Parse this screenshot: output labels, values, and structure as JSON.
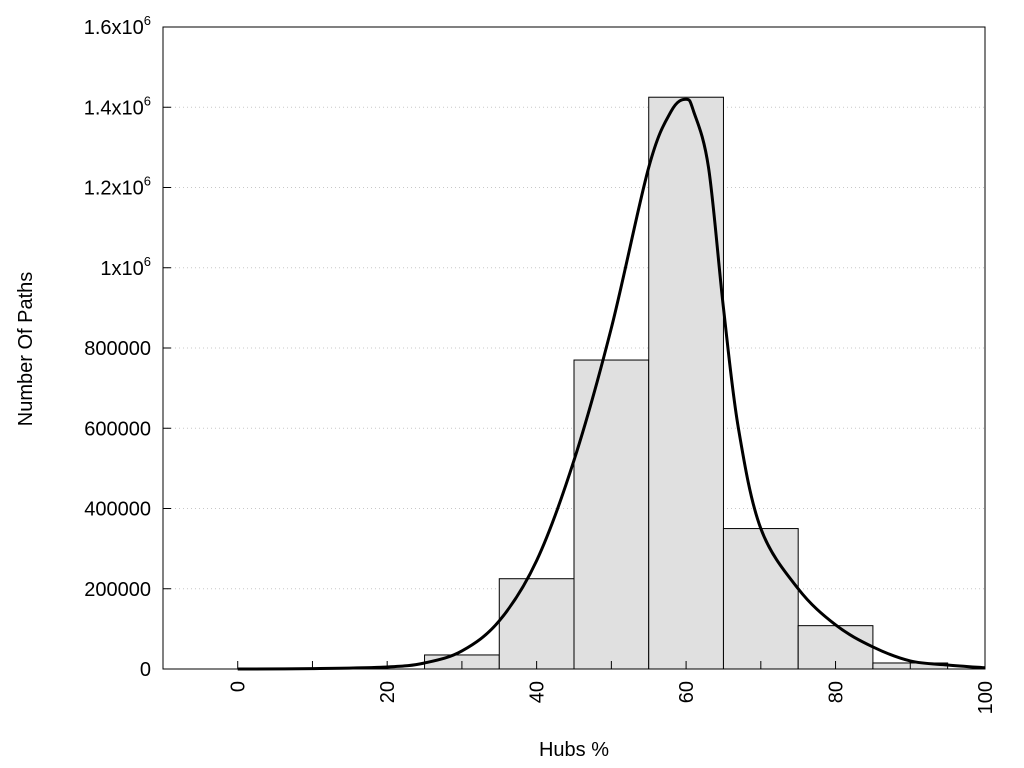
{
  "chart_data": {
    "type": "bar",
    "xlabel": "Hubs %",
    "ylabel": "Number Of Paths",
    "xlim": [
      -10,
      100
    ],
    "ylim": [
      0,
      1600000
    ],
    "x_ticks": [
      {
        "value": 0,
        "label": "0"
      },
      {
        "value": 20,
        "label": "20"
      },
      {
        "value": 40,
        "label": "40"
      },
      {
        "value": 60,
        "label": "60"
      },
      {
        "value": 80,
        "label": "80"
      },
      {
        "value": 100,
        "label": "100"
      }
    ],
    "y_ticks": [
      {
        "value": 0,
        "label": "0",
        "exp": ""
      },
      {
        "value": 200000,
        "label": "200000",
        "exp": ""
      },
      {
        "value": 400000,
        "label": "400000",
        "exp": ""
      },
      {
        "value": 600000,
        "label": "600000",
        "exp": ""
      },
      {
        "value": 800000,
        "label": "800000",
        "exp": ""
      },
      {
        "value": 1000000,
        "label": "1x10",
        "exp": "6"
      },
      {
        "value": 1200000,
        "label": "1.2x10",
        "exp": "6"
      },
      {
        "value": 1400000,
        "label": "1.4x10",
        "exp": "6"
      },
      {
        "value": 1600000,
        "label": "1.6x10",
        "exp": "6"
      }
    ],
    "grid": "horizontal dotted",
    "bins": [
      {
        "x0": 25,
        "x1": 35,
        "value": 35000
      },
      {
        "x0": 35,
        "x1": 45,
        "value": 225000
      },
      {
        "x0": 45,
        "x1": 55,
        "value": 770000
      },
      {
        "x0": 55,
        "x1": 65,
        "value": 1425000
      },
      {
        "x0": 65,
        "x1": 75,
        "value": 350000
      },
      {
        "x0": 75,
        "x1": 85,
        "value": 108000
      },
      {
        "x0": 85,
        "x1": 95,
        "value": 15000
      }
    ],
    "curve": {
      "x": [
        0,
        10,
        20,
        25,
        30,
        35,
        40,
        45,
        50,
        55,
        58,
        60,
        61,
        63,
        65,
        67,
        70,
        75,
        80,
        85,
        90,
        95,
        100
      ],
      "y": [
        0,
        1000,
        5000,
        15000,
        45000,
        120000,
        270000,
        520000,
        850000,
        1250000,
        1390000,
        1420000,
        1390000,
        1250000,
        900000,
        600000,
        350000,
        200000,
        110000,
        55000,
        20000,
        10000,
        3000
      ]
    }
  }
}
